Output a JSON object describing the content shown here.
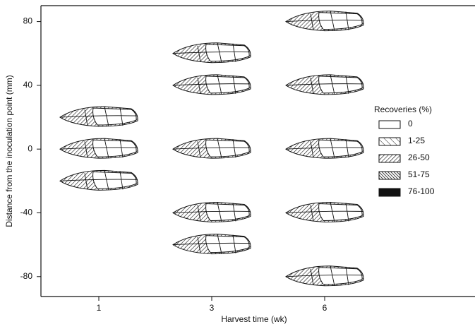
{
  "chart_data": {
    "type": "glyph-scatter",
    "x_label": "Harvest time (wk)",
    "y_label": "Distance from the inoculation point (mm)",
    "categories": [
      "1",
      "3",
      "6"
    ],
    "values": [
      [
        20,
        0,
        -20
      ],
      [
        60,
        40,
        0,
        -40,
        -60
      ],
      [
        80,
        40,
        0,
        -40,
        -80
      ]
    ],
    "ylim": [
      -92.5,
      90
    ],
    "yticks": [
      -80,
      -40,
      0,
      40,
      80
    ],
    "legend": {
      "title": "Recoveries (%)",
      "items": [
        {
          "label": "0",
          "fill": "white"
        },
        {
          "label": "1-25",
          "fill": "sparse-hatch"
        },
        {
          "label": "26-50",
          "fill": "hatch"
        },
        {
          "label": "51-75",
          "fill": "dense-hatch"
        },
        {
          "label": "76-100",
          "fill": "black"
        }
      ]
    }
  }
}
